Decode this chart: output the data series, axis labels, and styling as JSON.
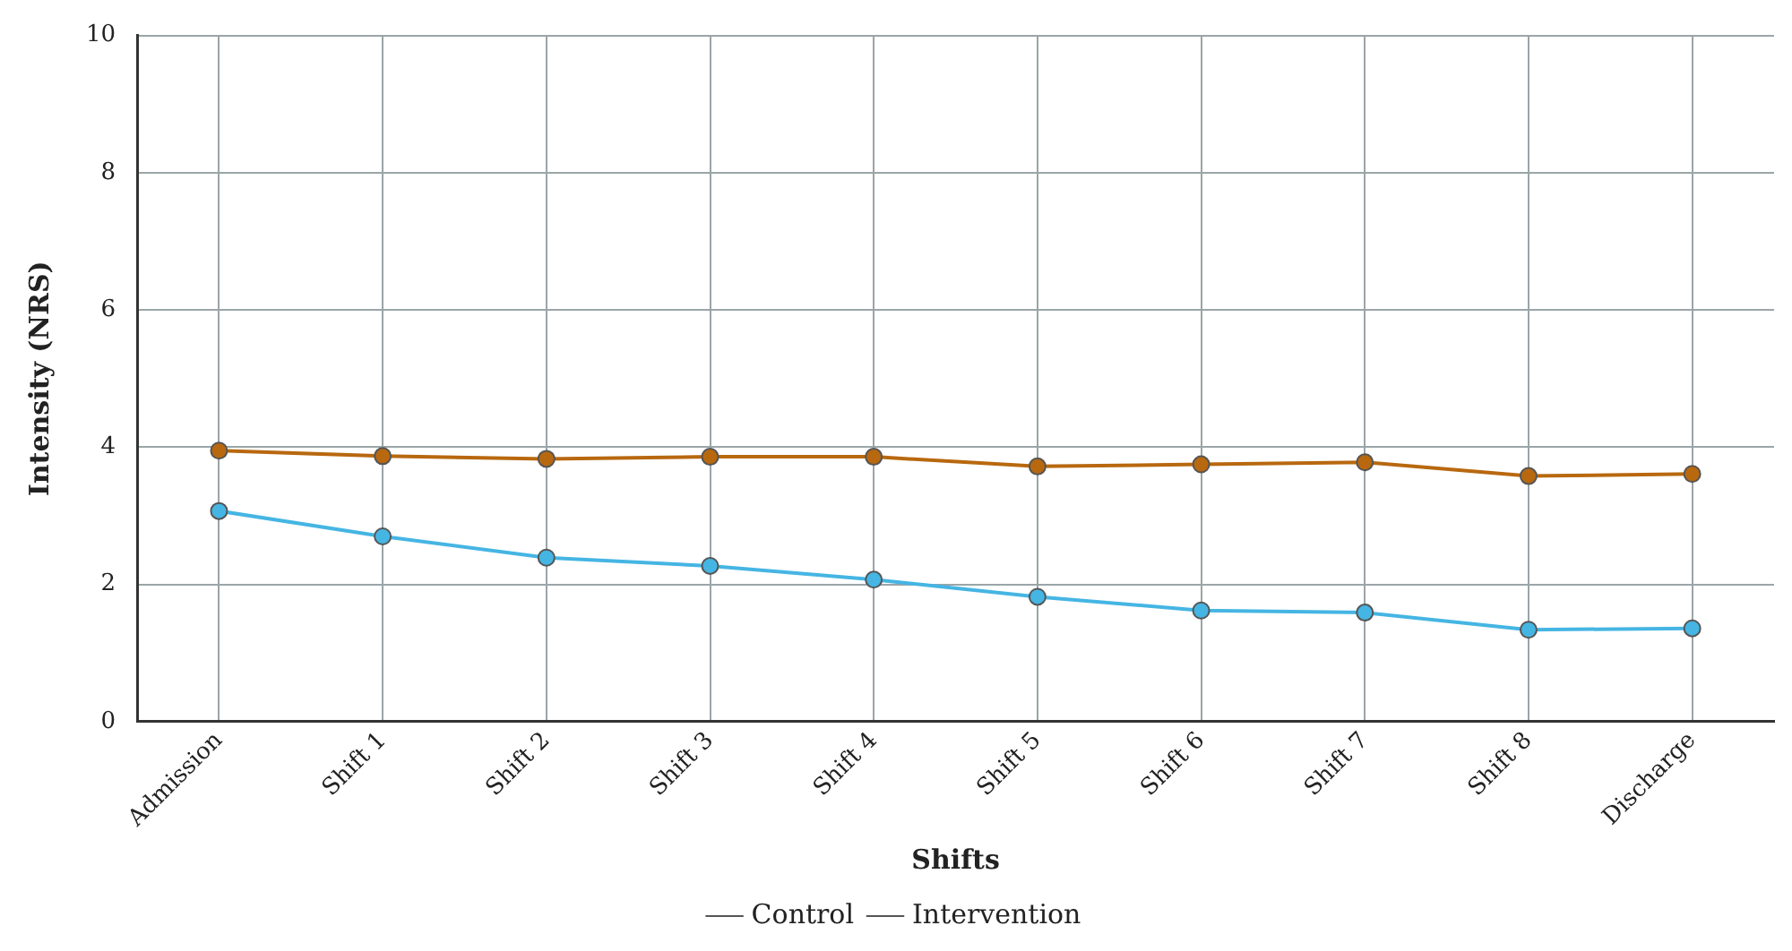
{
  "chart_data": {
    "type": "line",
    "xlabel": "Shifts",
    "ylabel": "Intensity (NRS)",
    "categories": [
      "Admission",
      "Shift 1",
      "Shift 2",
      "Shift 3",
      "Shift 4",
      "Shift 5",
      "Shift 6",
      "Shift 7",
      "Shift 8",
      "Discharge"
    ],
    "series": [
      {
        "name": "Control",
        "color": "#b8680f",
        "values": [
          3.95,
          3.87,
          3.83,
          3.86,
          3.86,
          3.72,
          3.75,
          3.78,
          3.58,
          3.61
        ]
      },
      {
        "name": "Intervention",
        "color": "#45b5e3",
        "values": [
          3.07,
          2.7,
          2.39,
          2.27,
          2.07,
          1.82,
          1.62,
          1.59,
          1.34,
          1.36
        ]
      }
    ],
    "ylim": [
      0,
      10
    ],
    "yticks": [
      0,
      2,
      4,
      6,
      8,
      10
    ],
    "grid": true,
    "legend": "bottom",
    "marker": "circle",
    "line_style": "solid"
  }
}
